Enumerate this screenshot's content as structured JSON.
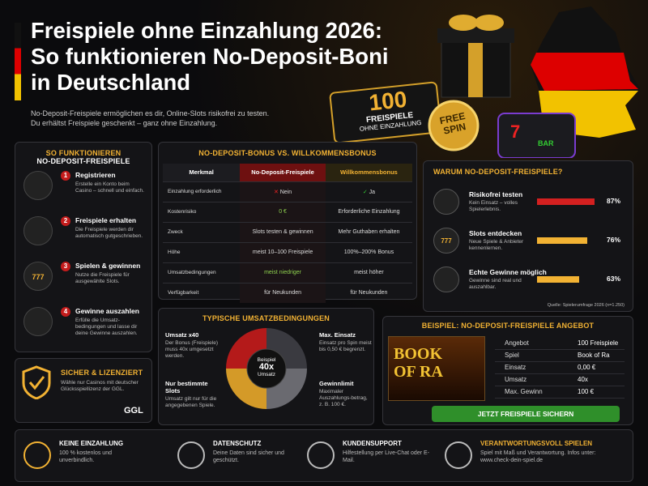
{
  "header": {
    "title_lines": [
      "Freispiele ohne Einzahlung 2026:",
      "So funktionieren No-Deposit-Boni",
      "in Deutschland"
    ],
    "intro_lines": [
      "No-Deposit-Freispiele ermöglichen es dir, Online-Slots risikofrei zu testen.",
      "Du erhältst Freispiele geschenkt – ganz ohne Einzahlung."
    ]
  },
  "hero": {
    "badge_number": "100",
    "badge_line1": "FREISPIELE",
    "badge_line2": "OHNE EINZAHLUNG",
    "coin_line1": "FREE",
    "coin_line2": "SPIN",
    "slot_label": "BAR",
    "slot_symbol": "7"
  },
  "how_it_works": {
    "title_line1": "SO FUNKTIONIEREN",
    "title_line2": "NO-DEPOSIT-FREISPIELE",
    "steps": [
      {
        "number": "1",
        "title": "Registrieren",
        "text": "Erstelle ein Konto beim Casino – schnell und einfach."
      },
      {
        "number": "2",
        "title": "Freispiele erhalten",
        "text": "Die Freispiele werden dir automatisch gutgeschrieben."
      },
      {
        "number": "3",
        "title": "Spielen & gewinnen",
        "text": "Nutze die Freispiele für ausgewählte Slots.",
        "icon_text": "777"
      },
      {
        "number": "4",
        "title": "Gewinne auszahlen",
        "text": "Erfülle die Umsatz-bedingungen und lasse dir deine Gewinne auszahlen."
      }
    ]
  },
  "comparison": {
    "title": "NO-DEPOSIT-BONUS VS. WILLKOMMENSBONUS",
    "header": [
      "Merkmal",
      "No-Deposit-Freispiele",
      "Willkommensbonus"
    ],
    "rows": [
      [
        "Einzahlung erforderlich",
        "Nein",
        "Ja"
      ],
      [
        "Kostenrisiko",
        "0 €",
        "Erforderliche Einzahlung"
      ],
      [
        "Zweck",
        "Slots testen & gewinnen",
        "Mehr Guthaben erhalten"
      ],
      [
        "Höhe",
        "meist 10–100 Freispiele",
        "100%–200% Bonus"
      ],
      [
        "Umsatzbedingungen",
        "meist niedriger",
        "meist höher"
      ],
      [
        "Verfügbarkeit",
        "für Neukunden",
        "für Neukunden"
      ]
    ]
  },
  "why": {
    "title": "WARUM NO-DEPOSIT-FREISPIELE?",
    "items": [
      {
        "title": "Risikofrei testen",
        "text": "Kein Einsatz – volles Spielerlebnis.",
        "percent": 87,
        "percent_label": "87%",
        "color": "#d42020"
      },
      {
        "title": "Slots entdecken",
        "text": "Neue Spiele & Anbieter kennenlernen.",
        "percent": 76,
        "percent_label": "76%",
        "color": "#f2b233",
        "icon_text": "777"
      },
      {
        "title": "Echte Gewinne möglich",
        "text": "Gewinne sind real und auszahlbar.",
        "percent": 63,
        "percent_label": "63%",
        "color": "#f2b233"
      }
    ],
    "source": "Quelle: Spielerumfrage 2026 (n=1.250)"
  },
  "wagering": {
    "title": "TYPISCHE UMSATZBEDINGUNGEN",
    "center": [
      "Beispiel",
      "40x",
      "Umsatz"
    ],
    "quadrants": [
      {
        "title": "Umsatz x40",
        "text": "Der Bonus (Freispiele) muss 40x umgesetzt werden."
      },
      {
        "title": "Max. Einsatz",
        "text": "Einsatz pro Spin meist bis 0,50 € begrenzt."
      },
      {
        "title": "Nur bestimmte Slots",
        "text": "Umsatz gilt nur für die angegebenen Spiele."
      },
      {
        "title": "Gewinnlimit",
        "text": "Maximaler Auszahlungs-betrag, z. B. 100 €."
      }
    ]
  },
  "example": {
    "title": "BEISPIEL: NO-DEPOSIT-FREISPIELE ANGEBOT",
    "game_logo_line1": "BOOK",
    "game_logo_line2": "OF RA",
    "rows": [
      [
        "Angebot",
        "100 Freispiele"
      ],
      [
        "Spiel",
        "Book of Ra"
      ],
      [
        "Einsatz",
        "0,00 €"
      ],
      [
        "Umsatz",
        "40x"
      ],
      [
        "Max. Gewinn",
        "100 €"
      ]
    ],
    "button": "JETZT FREISPIELE SICHERN"
  },
  "safety": {
    "title": "SICHER & LIZENZIERT",
    "text": "Wähle nur Casinos mit deutscher Glücksspiellizenz der GGL.",
    "logo": "GGL"
  },
  "footer": [
    {
      "title": "KEINE EINZAHLUNG",
      "text": "100 % kostenlos und unverbindlich."
    },
    {
      "title": "DATENSCHUTZ",
      "text": "Deine Daten sind sicher und geschützt."
    },
    {
      "title": "KUNDENSUPPORT",
      "text": "Hilfestellung per Live-Chat oder E-Mail."
    },
    {
      "title": "VERANTWORTUNGSVOLL SPIELEN",
      "text": "Spiel mit Maß und Verantwortung. Infos unter: www.check-dein-spiel.de"
    }
  ]
}
